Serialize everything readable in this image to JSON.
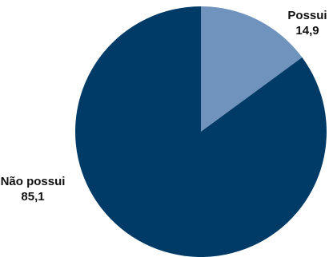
{
  "chart_data": {
    "type": "pie",
    "title": "",
    "slices": [
      {
        "label": "Possui",
        "value": 14.9,
        "value_text": "14,9",
        "color": "#6f93bd"
      },
      {
        "label": "Não possui",
        "value": 85.1,
        "value_text": "85,1",
        "color": "#003a66"
      }
    ],
    "legend": "none"
  }
}
